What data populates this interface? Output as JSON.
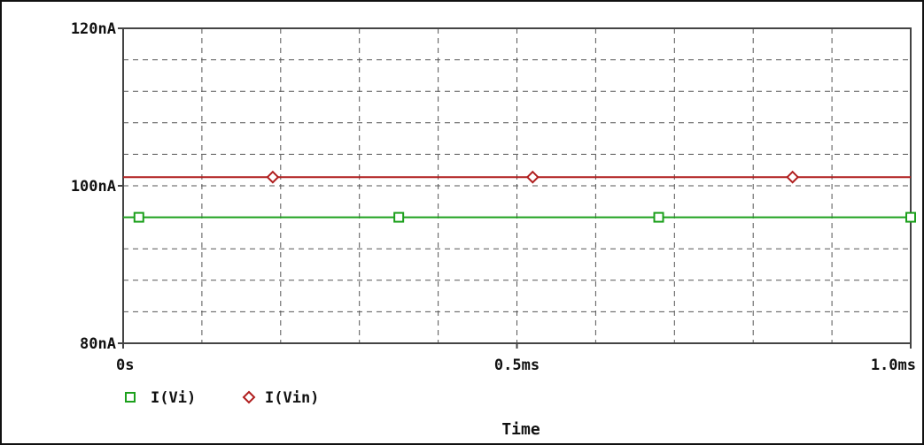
{
  "chart_data": {
    "type": "line",
    "title": "",
    "xlabel": "Time",
    "ylabel": "",
    "x_unit": "s",
    "y_unit": "nA",
    "xlim": [
      0,
      0.001
    ],
    "ylim": [
      80,
      120
    ],
    "x_ticks": [
      {
        "value": 0,
        "label": "0s"
      },
      {
        "value": 0.0005,
        "label": "0.5ms"
      },
      {
        "value": 0.001,
        "label": "1.0ms"
      }
    ],
    "y_ticks": [
      {
        "value": 80,
        "label": "80nA"
      },
      {
        "value": 100,
        "label": "100nA"
      },
      {
        "value": 120,
        "label": "120nA"
      }
    ],
    "grid": true,
    "legend_position": "bottom-left",
    "series": [
      {
        "name": "I(Vi)",
        "color": "#1ca01c",
        "marker": "square",
        "x": [
          0,
          0.001
        ],
        "y": [
          96,
          96
        ],
        "marker_x": [
          2e-05,
          0.00035,
          0.00068,
          0.001
        ]
      },
      {
        "name": "I(Vin)",
        "color": "#b01e1e",
        "marker": "diamond",
        "x": [
          0,
          0.001
        ],
        "y": [
          101.1,
          101.1
        ],
        "marker_x": [
          0.00019,
          0.00052,
          0.00085
        ]
      }
    ]
  }
}
